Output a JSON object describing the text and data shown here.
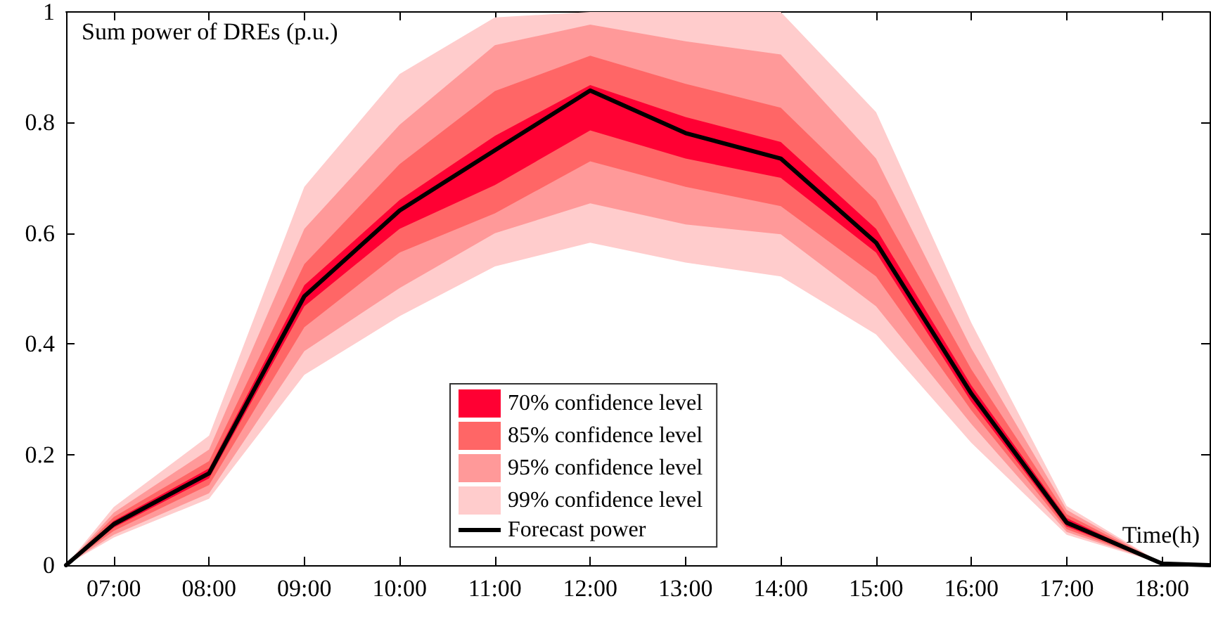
{
  "chart_data": {
    "type": "line",
    "xlabel": "Time(h)",
    "ylabel": "Sum power of DREs (p.u.)",
    "x": [
      6.5,
      7,
      8,
      9,
      10,
      11,
      12,
      13,
      14,
      15,
      16,
      17,
      18,
      18.5
    ],
    "series": [
      {
        "name": "99% confidence level",
        "type": "area",
        "color": "#ffcccc",
        "values": [
          null,
          null,
          null,
          null,
          null,
          null,
          null,
          null,
          null,
          null,
          null,
          null,
          null,
          null
        ],
        "lower": [
          0,
          0.05,
          0.12,
          0.344,
          0.45,
          0.54,
          0.583,
          0.547,
          0.522,
          0.417,
          0.221,
          0.055,
          0.003,
          0
        ],
        "upper": [
          0,
          0.105,
          0.234,
          0.684,
          0.888,
          0.99,
          1,
          1,
          1,
          0.819,
          0.438,
          0.107,
          0.003,
          0
        ]
      },
      {
        "name": "95% confidence level",
        "type": "area",
        "color": "#ff9999",
        "values": [
          null,
          null,
          null,
          null,
          null,
          null,
          null,
          null,
          null,
          null,
          null,
          null,
          null,
          null
        ],
        "lower": [
          0,
          0.055,
          0.13,
          0.387,
          0.501,
          0.6,
          0.654,
          0.616,
          0.598,
          0.468,
          0.255,
          0.06,
          0.003,
          0
        ],
        "upper": [
          0,
          0.095,
          0.209,
          0.608,
          0.796,
          0.94,
          0.977,
          0.947,
          0.923,
          0.735,
          0.392,
          0.1,
          0.003,
          0
        ]
      },
      {
        "name": "85% confidence level",
        "type": "area",
        "color": "#ff6666",
        "values": [
          null,
          null,
          null,
          null,
          null,
          null,
          null,
          null,
          null,
          null,
          null,
          null,
          null,
          null
        ],
        "lower": [
          0,
          0.062,
          0.145,
          0.43,
          0.565,
          0.636,
          0.73,
          0.684,
          0.649,
          0.522,
          0.28,
          0.065,
          0.003,
          0
        ],
        "upper": [
          0,
          0.087,
          0.188,
          0.544,
          0.725,
          0.857,
          0.921,
          0.87,
          0.827,
          0.659,
          0.354,
          0.092,
          0.003,
          0
        ]
      },
      {
        "name": "70% confidence level",
        "type": "area",
        "color": "#ff0033",
        "values": [
          null,
          null,
          null,
          null,
          null,
          null,
          null,
          null,
          null,
          null,
          null,
          null,
          null,
          null
        ],
        "lower": [
          0,
          0.068,
          0.157,
          0.468,
          0.608,
          0.687,
          0.786,
          0.735,
          0.7,
          0.565,
          0.295,
          0.07,
          0.003,
          0
        ],
        "upper": [
          0,
          0.08,
          0.175,
          0.506,
          0.66,
          0.776,
          0.868,
          0.81,
          0.765,
          0.608,
          0.325,
          0.085,
          0.003,
          0
        ]
      },
      {
        "name": "Forecast power",
        "color": "#000000",
        "values": [
          0,
          0.074,
          0.166,
          0.486,
          0.641,
          0.75,
          0.858,
          0.781,
          0.735,
          0.583,
          0.31,
          0.077,
          0.003,
          0
        ]
      }
    ],
    "xlim": [
      6.5,
      18.5
    ],
    "xticks": [
      {
        "value": 7,
        "label": "07:00"
      },
      {
        "value": 8,
        "label": "08:00"
      },
      {
        "value": 9,
        "label": "09:00"
      },
      {
        "value": 10,
        "label": "10:00"
      },
      {
        "value": 11,
        "label": "11:00"
      },
      {
        "value": 12,
        "label": "12:00"
      },
      {
        "value": 13,
        "label": "13:00"
      },
      {
        "value": 14,
        "label": "14:00"
      },
      {
        "value": 15,
        "label": "15:00"
      },
      {
        "value": 16,
        "label": "16:00"
      },
      {
        "value": 17,
        "label": "17:00"
      },
      {
        "value": 18,
        "label": "18:00"
      }
    ],
    "ylim": [
      0,
      1
    ],
    "yticks": [
      0,
      0.2,
      0.4,
      0.6,
      0.8,
      1
    ],
    "legend": "bottom",
    "grid": false,
    "marker": "none",
    "line_style": "solid"
  }
}
